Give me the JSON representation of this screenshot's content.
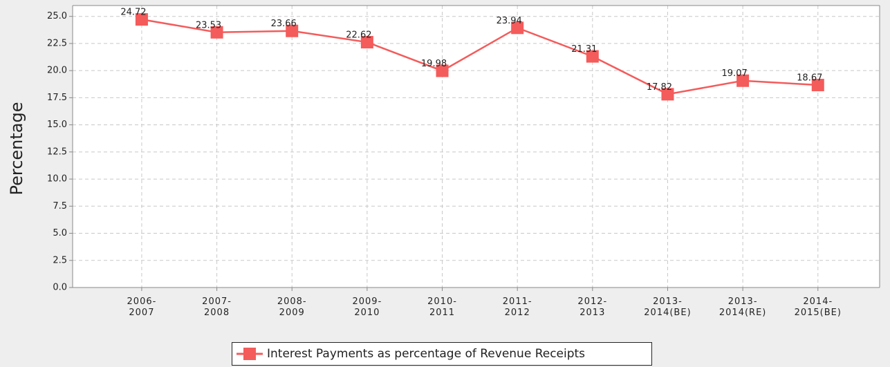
{
  "chart_data": {
    "type": "line",
    "y_label": "Percentage",
    "categories": [
      "2006-\n2007",
      "2007-\n2008",
      "2008-\n2009",
      "2009-\n2010",
      "2010-\n2011",
      "2011-\n2012",
      "2012-\n2013",
      "2013-\n2014(BE)",
      "2013-\n2014(RE)",
      "2014-\n2015(BE)"
    ],
    "series": [
      {
        "name": "Interest Payments as percentage of Revenue Receipts",
        "color": "#f45b5b",
        "values": [
          24.72,
          23.53,
          23.66,
          22.62,
          19.98,
          23.94,
          21.31,
          17.82,
          19.07,
          18.67
        ]
      }
    ],
    "ylim": [
      0,
      26
    ],
    "yticks": [
      {
        "value": 0,
        "label": "0.0"
      },
      2.5,
      {
        "value": 5,
        "label": "5.0"
      },
      7.5,
      {
        "value": 10,
        "label": "10.0"
      },
      12.5,
      {
        "value": 15,
        "label": "15.0"
      },
      17.5,
      {
        "value": 20,
        "label": "20.0"
      },
      22.5,
      {
        "value": 25,
        "label": "25.0"
      }
    ],
    "grid": true
  }
}
